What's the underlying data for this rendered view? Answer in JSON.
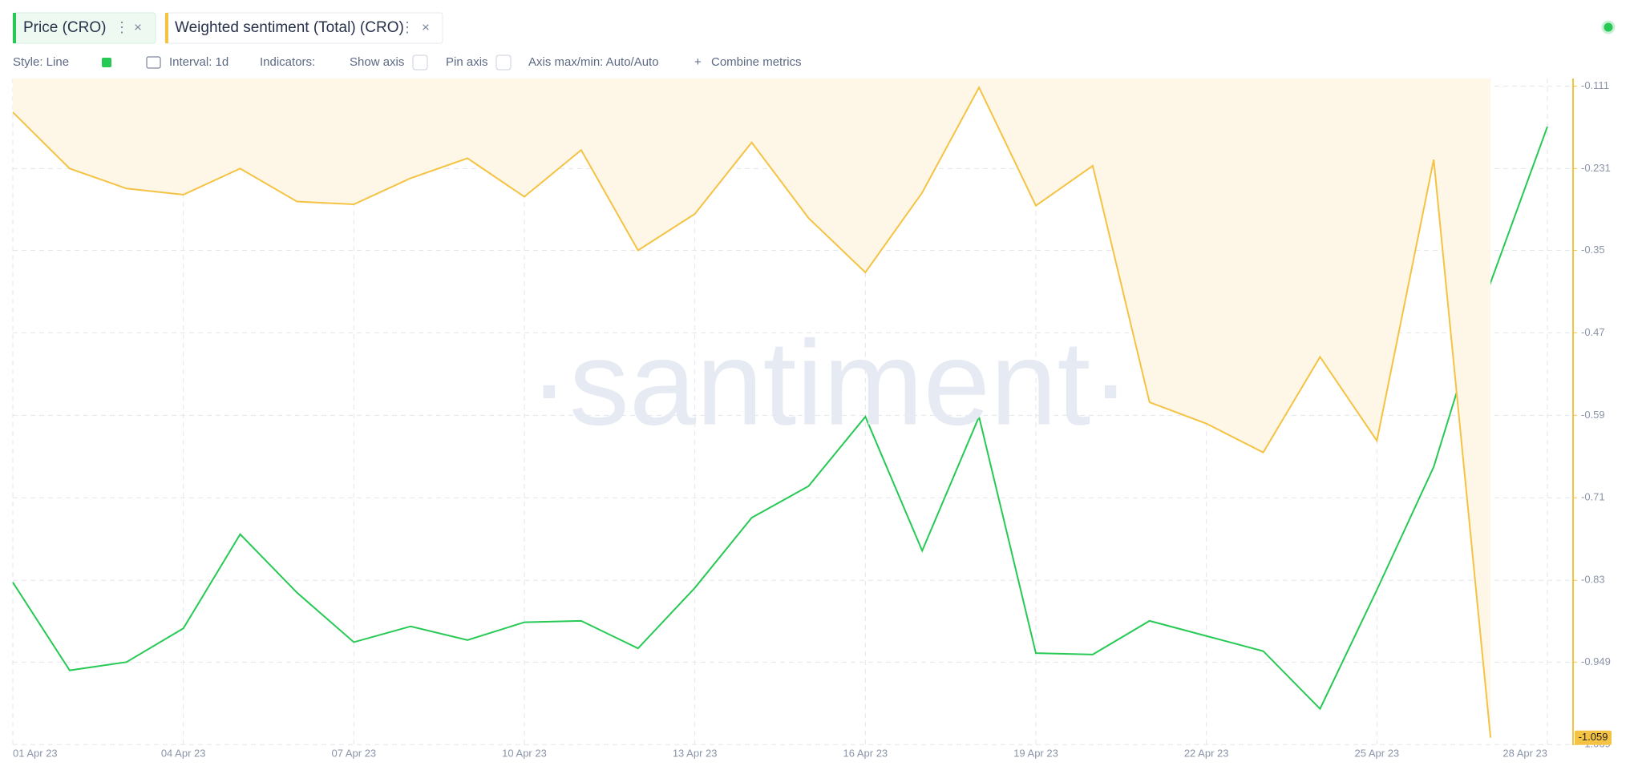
{
  "chart_data": {
    "type": "line",
    "categories": [
      "01 Apr 23",
      null,
      null,
      "04 Apr 23",
      null,
      null,
      "07 Apr 23",
      null,
      null,
      "10 Apr 23",
      null,
      null,
      "13 Apr 23",
      null,
      null,
      "16 Apr 23",
      null,
      null,
      "19 Apr 23",
      null,
      null,
      "22 Apr 23",
      null,
      null,
      "25 Apr 23",
      null,
      null,
      "28 Apr 23"
    ],
    "series": [
      {
        "name": "Price (CRO)",
        "color": "#26c953",
        "values": [
          -0.833,
          -0.961,
          -0.949,
          -0.9,
          -0.763,
          -0.848,
          -0.92,
          -0.897,
          -0.917,
          -0.891,
          -0.889,
          -0.929,
          -0.841,
          -0.739,
          -0.693,
          -0.592,
          -0.787,
          -0.592,
          -0.936,
          -0.938,
          -0.889,
          -0.911,
          -0.933,
          -1.017,
          -0.844,
          -0.665,
          -0.397,
          -0.17
        ]
      },
      {
        "name": "Weighted sentiment (Total) (CRO)",
        "color": "#f5c343",
        "area_color": "#fef6e6",
        "values": [
          -0.149,
          -0.231,
          -0.26,
          -0.269,
          -0.231,
          -0.279,
          -0.283,
          -0.245,
          -0.216,
          -0.272,
          -0.204,
          -0.35,
          -0.297,
          -0.193,
          -0.303,
          -0.382,
          -0.266,
          -0.113,
          -0.285,
          -0.227,
          -0.571,
          -0.602,
          -0.644,
          -0.505,
          -0.627,
          -0.218,
          -1.059,
          null
        ]
      }
    ],
    "ylim": [
      -1.085,
      -0.1
    ],
    "yticks": [
      -0.111,
      -0.231,
      -0.35,
      -0.47,
      -0.59,
      -0.71,
      -0.83,
      -0.949,
      -1.069
    ],
    "grid": true
  },
  "ui": {
    "toolbar": [
      "Style: Line",
      "Interval: 1d",
      "Indicators:",
      "Show axis",
      "Pin axis",
      "Axis max/min: Auto/Auto",
      "Combine metrics"
    ],
    "watermark": "·santiment·"
  }
}
